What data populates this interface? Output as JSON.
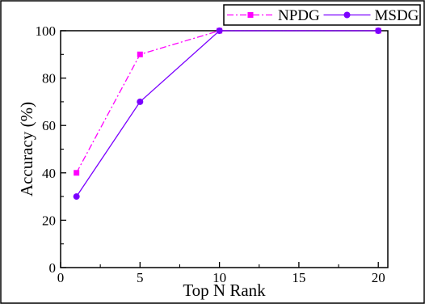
{
  "chart_data": {
    "type": "line",
    "title": "",
    "xlabel": "Top N Rank",
    "ylabel": "Accuracy (%)",
    "xlim": [
      0,
      20.6
    ],
    "ylim": [
      0,
      100
    ],
    "xticks": [
      "0",
      "5",
      "10",
      "15",
      "20"
    ],
    "yticks": [
      "0",
      "20",
      "40",
      "60",
      "80",
      "100"
    ],
    "xtick_values": [
      0,
      5,
      10,
      15,
      20
    ],
    "ytick_values": [
      0,
      20,
      40,
      60,
      80,
      100
    ],
    "grid": false,
    "legend_position": "top-right",
    "series": [
      {
        "name": "NPDG",
        "color": "#ff00ff",
        "line_style": "dash-dot",
        "marker": "square",
        "x": [
          1,
          5,
          10,
          20
        ],
        "y": [
          40,
          90,
          100,
          100
        ]
      },
      {
        "name": "MSDG",
        "color": "#7b00ff",
        "line_style": "solid",
        "marker": "circle",
        "x": [
          1,
          5,
          10,
          20
        ],
        "y": [
          30,
          70,
          100,
          100
        ]
      }
    ]
  }
}
